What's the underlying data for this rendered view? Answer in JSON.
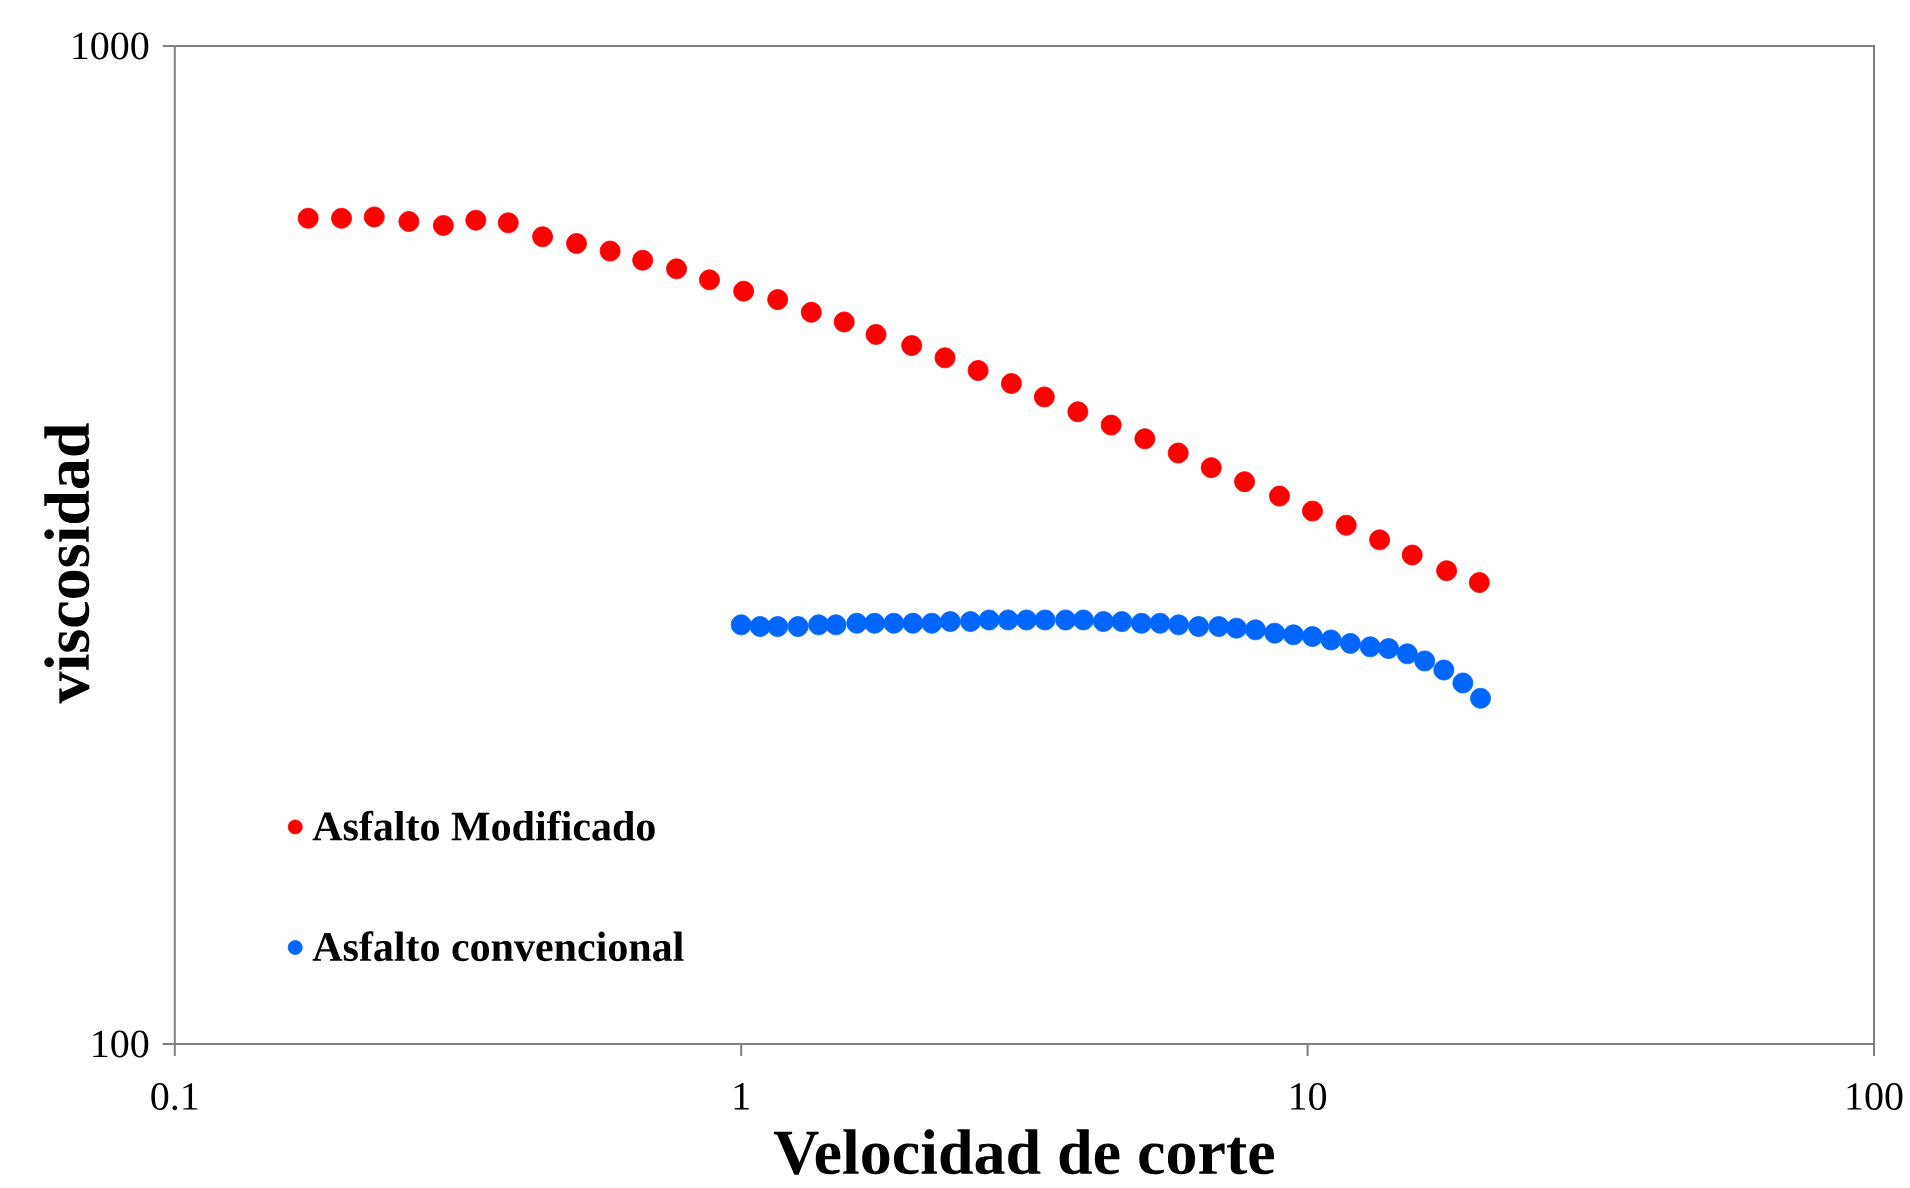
{
  "chart_data": {
    "type": "scatter",
    "xlabel": "Velocidad de corte",
    "ylabel": "viscosidad",
    "log": "xy",
    "xlim": [
      0.1,
      100
    ],
    "ylim": [
      100,
      1000
    ],
    "xticks": [
      0.1,
      1,
      10,
      100
    ],
    "yticks": [
      100,
      1000
    ],
    "marker": "circle",
    "legend": "bottom left",
    "series": [
      {
        "name": "Asfalto Modificado",
        "color": "#ff0000",
        "x": [
          0.172,
          0.197,
          0.225,
          0.259,
          0.298,
          0.34,
          0.388,
          0.446,
          0.512,
          0.587,
          0.67,
          0.769,
          0.879,
          1.01,
          1.16,
          1.33,
          1.52,
          1.73,
          2.0,
          2.29,
          2.62,
          3.0,
          3.43,
          3.93,
          4.5,
          5.16,
          5.91,
          6.76,
          7.74,
          8.92,
          10.2,
          11.7,
          13.4,
          15.3,
          17.6,
          20.1
        ],
        "values": [
          672,
          672,
          674,
          667,
          661,
          669,
          665,
          644,
          634,
          623,
          610,
          598,
          583,
          568,
          557,
          541,
          529,
          514,
          501,
          487,
          473,
          459,
          445,
          430,
          417,
          404,
          391,
          378,
          366,
          354,
          342,
          331,
          320,
          309,
          298,
          290
        ]
      },
      {
        "name": "Asfalto convencional",
        "color": "#0066ff",
        "x": [
          1.0,
          1.08,
          1.16,
          1.26,
          1.37,
          1.47,
          1.6,
          1.72,
          1.86,
          2.01,
          2.17,
          2.34,
          2.54,
          2.74,
          2.96,
          3.19,
          3.44,
          3.74,
          4.02,
          4.36,
          4.7,
          5.09,
          5.49,
          5.92,
          6.42,
          6.97,
          7.49,
          8.09,
          8.75,
          9.44,
          10.2,
          11.0,
          11.9,
          12.9,
          13.9,
          15.0,
          16.1,
          17.4,
          18.8,
          20.2
        ],
        "values": [
          263,
          262,
          262,
          262,
          263,
          263,
          264,
          264,
          264,
          264,
          264,
          265,
          265,
          266,
          266,
          266,
          266,
          266,
          266,
          265,
          265,
          264,
          264,
          263,
          262,
          262,
          261,
          260,
          258,
          257,
          256,
          254,
          252,
          250,
          249,
          246,
          242,
          237,
          230,
          222
        ]
      }
    ]
  }
}
